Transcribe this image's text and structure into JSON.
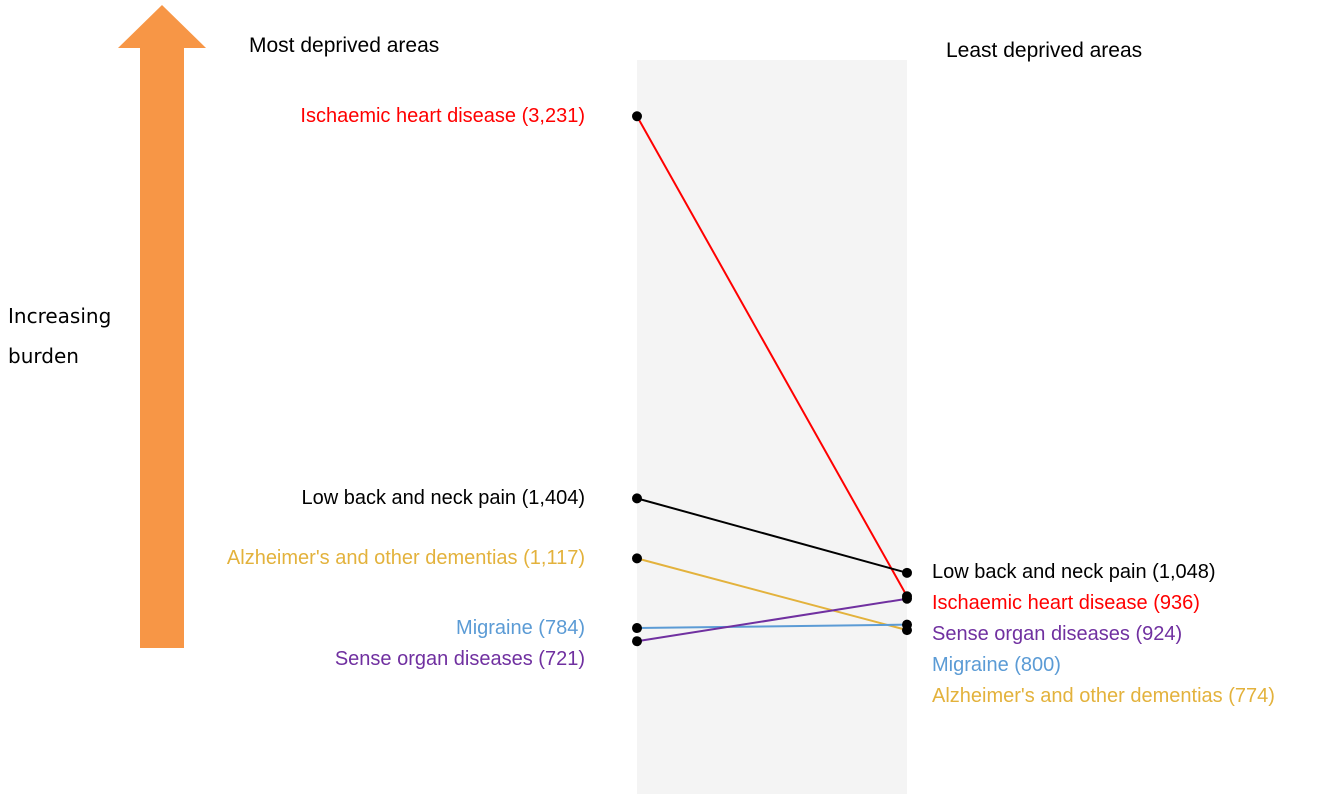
{
  "chart_data": {
    "type": "slope",
    "left_title": "Most deprived areas",
    "right_title": "Least deprived areas",
    "annotation": "Increasing burden",
    "ylim": [
      0,
      3500
    ],
    "series": [
      {
        "name": "Ischaemic heart disease",
        "color": "#ff0000",
        "values": [
          3231,
          936
        ],
        "value_labels": [
          "(3,231)",
          "(936)"
        ]
      },
      {
        "name": "Low back and neck pain",
        "color": "#000000",
        "values": [
          1404,
          1048
        ],
        "value_labels": [
          "(1,404)",
          "(1,048)"
        ]
      },
      {
        "name": "Alzheimer's and other dementias",
        "color": "#e3b23c",
        "values": [
          1117,
          774
        ],
        "value_labels": [
          "(1,117)",
          "(774)"
        ]
      },
      {
        "name": "Migraine",
        "color": "#5b9bd5",
        "values": [
          784,
          800
        ],
        "value_labels": [
          "(784)",
          "(800)"
        ]
      },
      {
        "name": "Sense organ diseases",
        "color": "#7030a0",
        "values": [
          721,
          924
        ],
        "value_labels": [
          "(721)",
          "(924)"
        ]
      }
    ]
  }
}
